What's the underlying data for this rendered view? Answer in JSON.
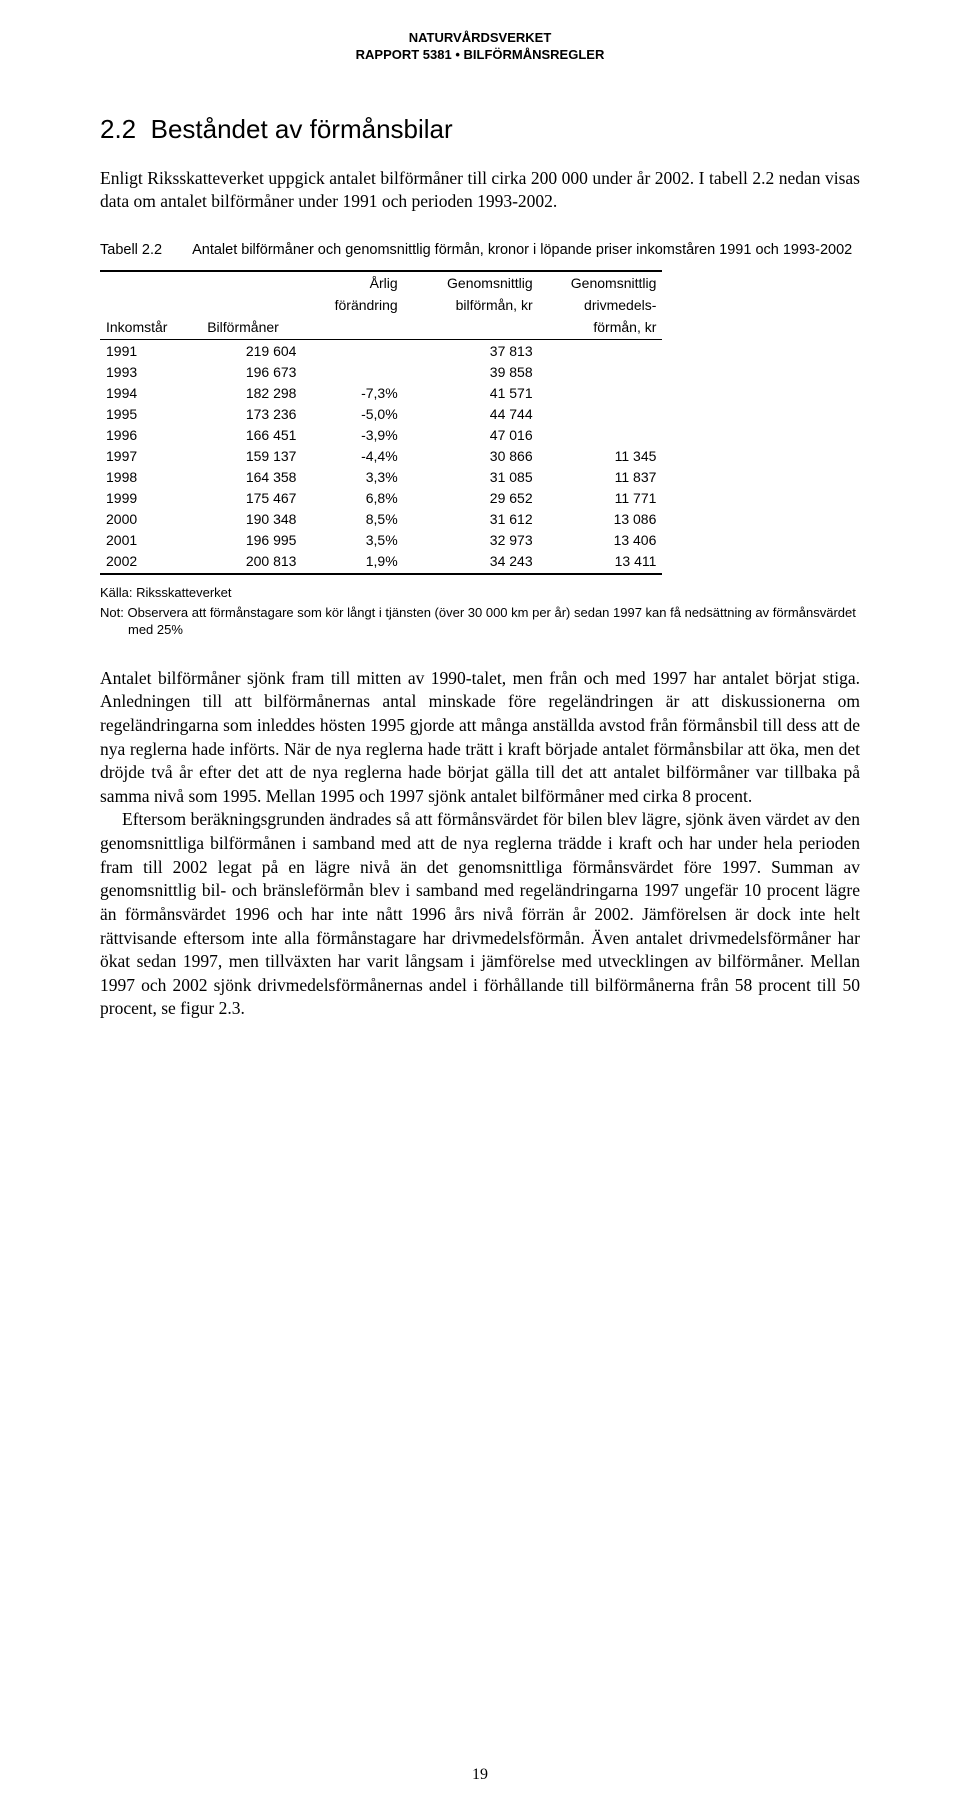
{
  "header": {
    "line1": "NATURVÅRDSVERKET",
    "line2": "RAPPORT 5381 • BILFÖRMÅNSREGLER"
  },
  "section": {
    "number": "2.2",
    "title": "Beståndet av förmånsbilar"
  },
  "intro_paragraph": "Enligt Riksskatteverket uppgick antalet bilförmåner till cirka 200 000 under år 2002. I tabell 2.2 nedan visas data om antalet bilförmåner under 1991 och perioden 1993-2002.",
  "table": {
    "caption_label": "Tabell 2.2",
    "caption_text": "Antalet bilförmåner och genomsnittlig förmån, kronor i löpande priser inkomståren 1991 och 1993-2002",
    "col_headers": {
      "c1": "Inkomstår",
      "c2": "Bilförmåner",
      "c3a": "Årlig",
      "c3b": "förändring",
      "c4a": "Genomsnittlig",
      "c4b": "bilförmån, kr",
      "c5a": "Genomsnittlig",
      "c5b": "drivmedels-",
      "c5c": "förmån, kr"
    },
    "col_widths_pct": [
      18,
      18,
      18,
      24,
      22
    ],
    "rows": [
      {
        "year": "1991",
        "count": "219 604",
        "change": "",
        "avg_car": "37 813",
        "avg_fuel": ""
      },
      {
        "year": "1993",
        "count": "196 673",
        "change": "",
        "avg_car": "39 858",
        "avg_fuel": ""
      },
      {
        "year": "1994",
        "count": "182 298",
        "change": "-7,3%",
        "avg_car": "41 571",
        "avg_fuel": ""
      },
      {
        "year": "1995",
        "count": "173 236",
        "change": "-5,0%",
        "avg_car": "44 744",
        "avg_fuel": ""
      },
      {
        "year": "1996",
        "count": "166 451",
        "change": "-3,9%",
        "avg_car": "47 016",
        "avg_fuel": ""
      },
      {
        "year": "1997",
        "count": "159 137",
        "change": "-4,4%",
        "avg_car": "30 866",
        "avg_fuel": "11 345"
      },
      {
        "year": "1998",
        "count": "164 358",
        "change": "3,3%",
        "avg_car": "31 085",
        "avg_fuel": "11 837"
      },
      {
        "year": "1999",
        "count": "175 467",
        "change": "6,8%",
        "avg_car": "29 652",
        "avg_fuel": "11 771"
      },
      {
        "year": "2000",
        "count": "190 348",
        "change": "8,5%",
        "avg_car": "31 612",
        "avg_fuel": "13 086"
      },
      {
        "year": "2001",
        "count": "196 995",
        "change": "3,5%",
        "avg_car": "32 973",
        "avg_fuel": "13 406"
      },
      {
        "year": "2002",
        "count": "200 813",
        "change": "1,9%",
        "avg_car": "34 243",
        "avg_fuel": "13 411"
      }
    ],
    "source": "Källa: Riksskatteverket",
    "note": "Not: Observera att förmånstagare som kör långt i tjänsten (över 30 000 km per år) sedan 1997 kan få nedsättning av förmånsvärdet med 25%"
  },
  "body": {
    "p1": "Antalet bilförmåner sjönk fram till mitten av 1990-talet, men från och med 1997 har antalet börjat stiga. Anledningen till att bilförmånernas antal minskade före regeländringen är att diskussionerna om regeländringarna som inleddes hösten 1995 gjorde att många anställda avstod från förmånsbil till dess att de nya reglerna hade införts. När de nya reglerna hade trätt i kraft började antalet förmånsbilar att öka, men det dröjde två år efter det att de nya reglerna hade börjat gälla till det att antalet bilförmåner var tillbaka på samma nivå som 1995. Mellan 1995 och 1997 sjönk antalet bilförmåner med cirka 8 procent.",
    "p2": "Eftersom beräkningsgrunden ändrades så att förmånsvärdet för bilen blev lägre, sjönk även värdet av den genomsnittliga bilförmånen i samband med att de nya reglerna trädde i kraft och har under hela perioden fram till 2002 legat på en lägre nivå än det genomsnittliga förmånsvärdet före 1997. Summan av genomsnittlig bil- och bränsleförmån blev i samband med regeländringarna 1997 ungefär 10 procent lägre än förmånsvärdet 1996 och har inte nått 1996 års nivå förrän år 2002. Jämförelsen är dock inte helt rättvisande eftersom inte alla förmånstagare har drivmedelsförmån. Även antalet drivmedelsförmåner har ökat sedan 1997, men tillväxten har varit långsam i jämförelse med utvecklingen av bilförmåner. Mellan 1997 och 2002 sjönk drivmedelsförmånernas andel i förhållande till bilförmånerna från 58 procent till 50 procent, se figur 2.3."
  },
  "page_number": "19",
  "colors": {
    "text": "#000000",
    "background": "#ffffff",
    "rule": "#000000"
  },
  "fonts": {
    "body_family": "Times New Roman",
    "sans_family": "Arial",
    "body_size_pt": 13,
    "heading_size_pt": 20,
    "table_size_pt": 10.5,
    "source_size_pt": 9.5
  }
}
